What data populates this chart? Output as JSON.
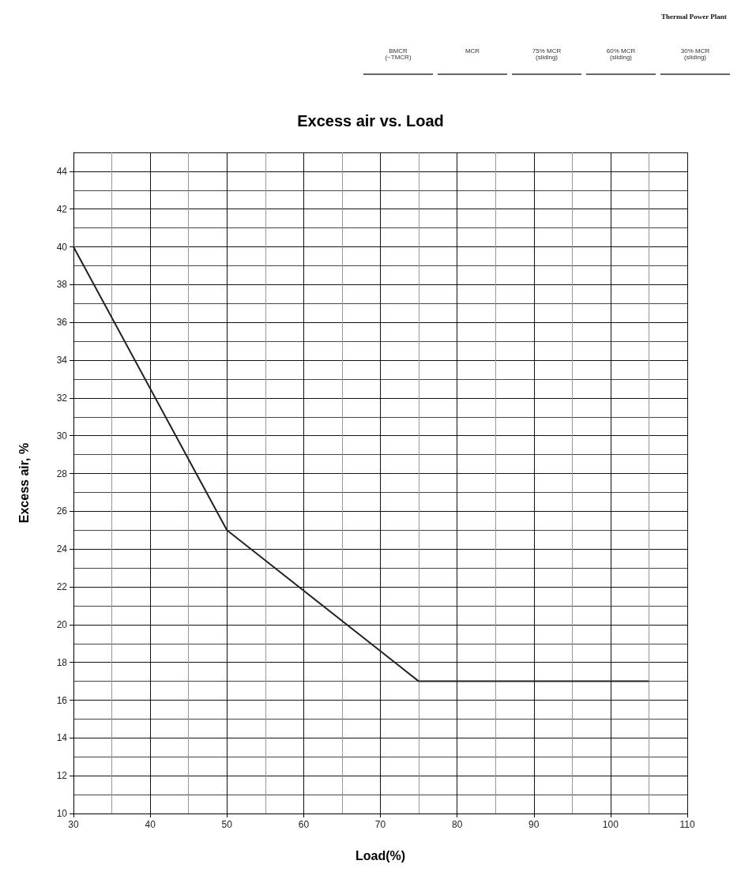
{
  "chart_data": {
    "type": "line",
    "title": "Excess air vs. Load",
    "xlabel": "Load(%)",
    "ylabel": "Excess air, %",
    "annotations": [
      "Thermal Power Plant",
      "BMCR\n(~TMCR)",
      "MCR",
      "75% MCR\n(sliding)",
      "60% MCR\n(sliding)",
      "30% MCR\n(sliding)"
    ],
    "x": [
      30,
      50,
      75,
      105
    ],
    "series": [
      {
        "color": "#222222",
        "values": [
          40,
          25,
          17,
          17
        ]
      }
    ],
    "xlim": [
      30,
      110
    ],
    "xticks": [
      30,
      40,
      50,
      60,
      70,
      80,
      90,
      100,
      110
    ],
    "ylim": [
      10,
      45
    ],
    "yticks": [
      10,
      12,
      14,
      16,
      18,
      20,
      22,
      24,
      26,
      28,
      30,
      32,
      34,
      36,
      38,
      40,
      42,
      44
    ],
    "grid": true,
    "marker": "none",
    "line_style": "solid"
  }
}
